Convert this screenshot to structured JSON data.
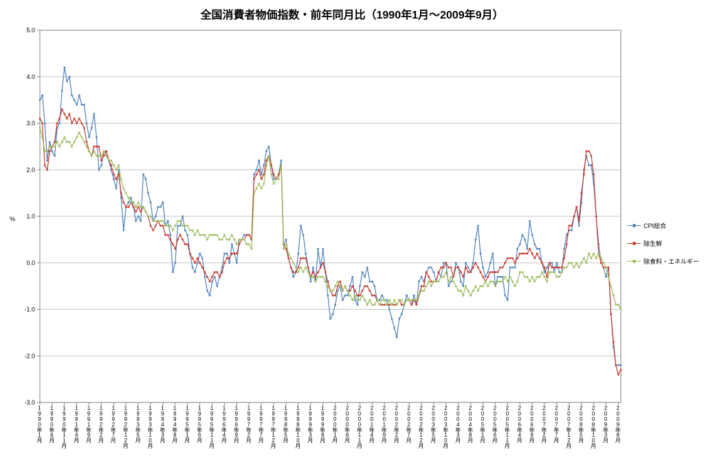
{
  "page": {
    "background": "#FFFFFF"
  },
  "chart_data": {
    "type": "line",
    "title": "全国消費者物価指数・前年同月比（1990年1月～2009年9月）",
    "ylabel": "%",
    "xlabel": "",
    "ylim": [
      -3.0,
      5.0
    ],
    "grid": "horizontal",
    "legend_position": "right",
    "y_ticks": [
      5.0,
      4.0,
      3.0,
      2.0,
      1.0,
      0.0,
      -1.0,
      -2.0,
      -3.0
    ],
    "y_tick_labels": [
      "5.0",
      "4.0",
      "3.0",
      "2.0",
      "1.0",
      "0.0",
      "-1.0",
      "-2.0",
      "-3.0"
    ],
    "x_points": 237,
    "x_start": "1990年1月",
    "x_end": "2009年9月",
    "x_tick_interval": 5,
    "x_tick_labels": [
      "1990年1月",
      "1990年6月",
      "1990年11月",
      "1991年4月",
      "1991年9月",
      "1992年2月",
      "1992年7月",
      "1992年12月",
      "1993年5月",
      "1993年10月",
      "1994年3月",
      "1994年8月",
      "1995年1月",
      "1995年6月",
      "1995年11月",
      "1996年4月",
      "1996年9月",
      "1997年2月",
      "1997年7月",
      "1997年12月",
      "1998年5月",
      "1998年10月",
      "1999年3月",
      "1999年8月",
      "2000年1月",
      "2000年6月",
      "2000年11月",
      "2001年4月",
      "2001年9月",
      "2002年2月",
      "2002年7月",
      "2002年12月",
      "2003年5月",
      "2003年10月",
      "2004年3月",
      "2004年8月",
      "2005年1月",
      "2005年6月",
      "2005年11月",
      "2006年4月",
      "2006年9月",
      "2007年2月",
      "2007年7月",
      "2007年12月",
      "2008年5月",
      "2008年10月",
      "2009年3月",
      "2009年8月"
    ],
    "series": [
      {
        "name": "CPI総合",
        "color": "#4F81BD",
        "values": [
          3.5,
          3.6,
          3.0,
          2.2,
          2.6,
          2.4,
          2.3,
          2.9,
          3.0,
          3.7,
          4.2,
          3.9,
          4.0,
          3.6,
          3.5,
          3.4,
          3.6,
          3.4,
          3.4,
          3.0,
          2.7,
          2.9,
          3.2,
          2.7,
          2.0,
          2.1,
          2.4,
          2.4,
          2.2,
          2.0,
          1.8,
          1.6,
          2.0,
          1.4,
          0.7,
          1.2,
          1.3,
          1.4,
          1.2,
          0.9,
          1.0,
          0.9,
          1.9,
          1.8,
          1.5,
          1.3,
          0.9,
          1.0,
          1.2,
          1.2,
          1.3,
          0.8,
          0.9,
          0.6,
          -0.2,
          0.0,
          0.8,
          0.8,
          1.0,
          0.7,
          0.6,
          0.2,
          -0.1,
          -0.2,
          0.0,
          0.2,
          0.1,
          -0.3,
          -0.6,
          -0.7,
          -0.4,
          -0.3,
          -0.5,
          -0.3,
          -0.1,
          0.2,
          0.2,
          0.0,
          0.4,
          0.2,
          0.0,
          0.5,
          0.5,
          0.6,
          0.6,
          0.6,
          0.5,
          1.9,
          2.0,
          2.2,
          1.9,
          2.1,
          2.4,
          2.5,
          2.1,
          1.8,
          1.8,
          1.9,
          2.2,
          0.4,
          0.5,
          0.1,
          -0.1,
          -0.3,
          -0.2,
          0.2,
          0.8,
          0.6,
          0.2,
          -0.1,
          -0.4,
          -0.1,
          -0.4,
          0.3,
          -0.1,
          0.3,
          -0.2,
          -0.7,
          -1.2,
          -1.1,
          -0.9,
          -0.6,
          -0.5,
          -0.8,
          -0.7,
          -0.7,
          -0.5,
          -0.3,
          -0.8,
          -0.9,
          -0.5,
          -0.2,
          -0.3,
          -0.1,
          -0.4,
          -0.4,
          -0.5,
          -0.8,
          -0.8,
          -0.7,
          -0.8,
          -0.8,
          -1.0,
          -1.2,
          -1.4,
          -1.6,
          -1.2,
          -1.1,
          -0.9,
          -0.7,
          -0.8,
          -0.9,
          -0.7,
          -0.9,
          -0.4,
          -0.3,
          -0.4,
          -0.2,
          -0.1,
          -0.1,
          -0.2,
          -0.4,
          -0.2,
          -0.3,
          0.0,
          0.0,
          -0.5,
          -0.4,
          -0.3,
          0.0,
          -0.1,
          -0.4,
          -0.5,
          0.0,
          -0.1,
          -0.2,
          0.0,
          0.5,
          0.8,
          0.2,
          -0.1,
          -0.3,
          -0.2,
          0.0,
          0.2,
          -0.5,
          -0.3,
          -0.3,
          -0.3,
          -0.7,
          -0.8,
          -0.1,
          -0.1,
          -0.1,
          0.3,
          0.4,
          0.6,
          0.5,
          0.3,
          0.9,
          0.6,
          0.4,
          0.3,
          0.3,
          0.0,
          -0.2,
          -0.1,
          0.0,
          0.0,
          -0.2,
          0.0,
          -0.2,
          -0.2,
          0.3,
          0.6,
          0.7,
          0.7,
          1.0,
          1.2,
          0.8,
          1.3,
          2.0,
          2.3,
          2.1,
          2.1,
          1.7,
          1.0,
          0.4,
          0.0,
          -0.1,
          -0.3,
          -0.1,
          -1.1,
          -1.8,
          -2.2,
          -2.2,
          -2.2
        ]
      },
      {
        "name": "除生鮮",
        "color": "#C8372D",
        "values": [
          3.1,
          3.0,
          2.1,
          2.0,
          2.4,
          2.5,
          2.6,
          3.0,
          3.1,
          3.3,
          3.2,
          3.1,
          3.2,
          3.0,
          3.1,
          3.0,
          3.1,
          3.0,
          2.9,
          2.6,
          2.4,
          2.3,
          2.5,
          2.5,
          2.5,
          2.2,
          2.3,
          2.4,
          2.2,
          2.1,
          1.9,
          1.8,
          1.9,
          1.5,
          1.3,
          1.2,
          1.2,
          1.3,
          1.2,
          1.1,
          1.2,
          1.1,
          1.2,
          1.1,
          1.0,
          0.8,
          0.7,
          0.8,
          0.9,
          0.8,
          0.8,
          0.6,
          0.6,
          0.5,
          0.4,
          0.3,
          0.5,
          0.6,
          0.5,
          0.4,
          0.4,
          0.2,
          0.1,
          0.0,
          0.1,
          0.0,
          -0.1,
          -0.2,
          -0.3,
          -0.4,
          -0.3,
          -0.2,
          -0.2,
          -0.3,
          -0.2,
          0.0,
          0.1,
          0.1,
          0.2,
          0.2,
          0.2,
          0.4,
          0.5,
          0.5,
          0.6,
          0.6,
          0.5,
          1.8,
          1.9,
          2.0,
          1.8,
          1.9,
          2.2,
          2.3,
          2.1,
          1.9,
          1.8,
          1.9,
          2.1,
          0.4,
          0.3,
          0.1,
          -0.1,
          -0.2,
          -0.2,
          -0.1,
          0.1,
          0.1,
          0.1,
          -0.1,
          -0.3,
          -0.2,
          -0.3,
          -0.2,
          -0.1,
          0.0,
          -0.2,
          -0.4,
          -0.6,
          -0.7,
          -0.7,
          -0.5,
          -0.4,
          -0.6,
          -0.5,
          -0.6,
          -0.6,
          -0.5,
          -0.6,
          -0.7,
          -0.7,
          -0.6,
          -0.5,
          -0.5,
          -0.6,
          -0.7,
          -0.7,
          -0.8,
          -0.9,
          -0.9,
          -0.9,
          -0.9,
          -0.9,
          -0.9,
          -0.9,
          -0.9,
          -0.8,
          -0.9,
          -0.9,
          -0.8,
          -0.8,
          -0.9,
          -0.8,
          -0.9,
          -0.7,
          -0.5,
          -0.5,
          -0.2,
          -0.3,
          -0.4,
          -0.4,
          -0.4,
          -0.2,
          -0.1,
          -0.1,
          0.0,
          -0.1,
          -0.1,
          -0.3,
          -0.1,
          -0.1,
          -0.2,
          -0.3,
          -0.1,
          -0.2,
          -0.2,
          -0.1,
          0.0,
          -0.1,
          -0.2,
          -0.3,
          -0.4,
          -0.3,
          -0.2,
          -0.2,
          -0.2,
          -0.2,
          -0.1,
          -0.1,
          0.0,
          0.1,
          0.1,
          0.1,
          0.0,
          0.1,
          0.2,
          0.2,
          0.2,
          0.2,
          0.3,
          0.2,
          0.1,
          0.2,
          0.1,
          0.0,
          -0.1,
          -0.3,
          0.0,
          -0.1,
          -0.1,
          -0.1,
          -0.1,
          -0.1,
          0.1,
          0.4,
          0.8,
          0.8,
          1.0,
          1.2,
          0.9,
          1.5,
          1.9,
          2.4,
          2.4,
          2.3,
          1.9,
          1.0,
          0.2,
          0.0,
          -0.1,
          -0.1,
          -0.1,
          -1.1,
          -1.7,
          -2.2,
          -2.4,
          -2.3
        ]
      },
      {
        "name": "除食料・エネルギー",
        "color": "#9BBB59",
        "values": [
          2.9,
          2.7,
          2.4,
          2.4,
          2.5,
          2.5,
          2.5,
          2.6,
          2.5,
          2.6,
          2.7,
          2.6,
          2.6,
          2.5,
          2.6,
          2.7,
          2.8,
          2.7,
          2.6,
          2.5,
          2.4,
          2.3,
          2.4,
          2.3,
          2.3,
          2.3,
          2.4,
          2.3,
          2.2,
          2.2,
          2.1,
          2.0,
          2.1,
          1.8,
          1.6,
          1.5,
          1.4,
          1.3,
          1.3,
          1.2,
          1.3,
          1.2,
          1.2,
          1.1,
          1.0,
          1.0,
          0.9,
          0.9,
          0.9,
          0.9,
          0.9,
          0.8,
          0.8,
          0.8,
          0.7,
          0.8,
          0.9,
          0.9,
          0.8,
          0.8,
          0.8,
          0.7,
          0.7,
          0.6,
          0.7,
          0.6,
          0.6,
          0.6,
          0.5,
          0.6,
          0.6,
          0.6,
          0.6,
          0.5,
          0.5,
          0.6,
          0.5,
          0.5,
          0.6,
          0.5,
          0.4,
          0.5,
          0.5,
          0.5,
          0.4,
          0.4,
          0.3,
          1.5,
          1.6,
          1.7,
          1.6,
          1.7,
          2.1,
          2.3,
          1.9,
          1.7,
          1.8,
          1.8,
          2.1,
          0.3,
          0.4,
          0.2,
          0.1,
          0.0,
          -0.1,
          -0.2,
          -0.1,
          -0.2,
          -0.1,
          -0.2,
          -0.3,
          -0.3,
          -0.4,
          -0.3,
          -0.3,
          -0.3,
          -0.4,
          -0.5,
          -0.6,
          -0.6,
          -0.5,
          -0.4,
          -0.5,
          -0.6,
          -0.5,
          -0.6,
          -0.7,
          -0.8,
          -0.7,
          -0.8,
          -0.8,
          -0.7,
          -0.8,
          -0.9,
          -0.8,
          -0.9,
          -0.9,
          -0.8,
          -0.9,
          -0.8,
          -0.8,
          -0.9,
          -0.8,
          -0.9,
          -0.8,
          -0.9,
          -0.8,
          -0.8,
          -0.9,
          -0.8,
          -0.8,
          -0.8,
          -0.8,
          -0.8,
          -0.7,
          -0.6,
          -0.6,
          -0.5,
          -0.4,
          -0.5,
          -0.4,
          -0.4,
          -0.4,
          -0.3,
          -0.3,
          -0.2,
          -0.4,
          -0.3,
          -0.4,
          -0.5,
          -0.6,
          -0.6,
          -0.7,
          -0.5,
          -0.6,
          -0.7,
          -0.6,
          -0.5,
          -0.6,
          -0.5,
          -0.5,
          -0.4,
          -0.5,
          -0.4,
          -0.4,
          -0.5,
          -0.4,
          -0.4,
          -0.4,
          -0.3,
          -0.4,
          -0.3,
          -0.4,
          -0.5,
          -0.4,
          -0.2,
          -0.2,
          -0.3,
          -0.3,
          -0.4,
          -0.3,
          -0.4,
          -0.3,
          -0.3,
          -0.2,
          -0.3,
          -0.4,
          -0.2,
          -0.2,
          -0.2,
          -0.3,
          -0.3,
          -0.2,
          -0.1,
          -0.1,
          0.0,
          0.0,
          -0.1,
          0.0,
          -0.1,
          0.0,
          0.1,
          0.0,
          0.2,
          0.1,
          0.2,
          0.1,
          0.2,
          0.1,
          0.0,
          -0.1,
          -0.3,
          -0.5,
          -0.7,
          -0.9,
          -0.9,
          -1.0
        ]
      }
    ]
  }
}
